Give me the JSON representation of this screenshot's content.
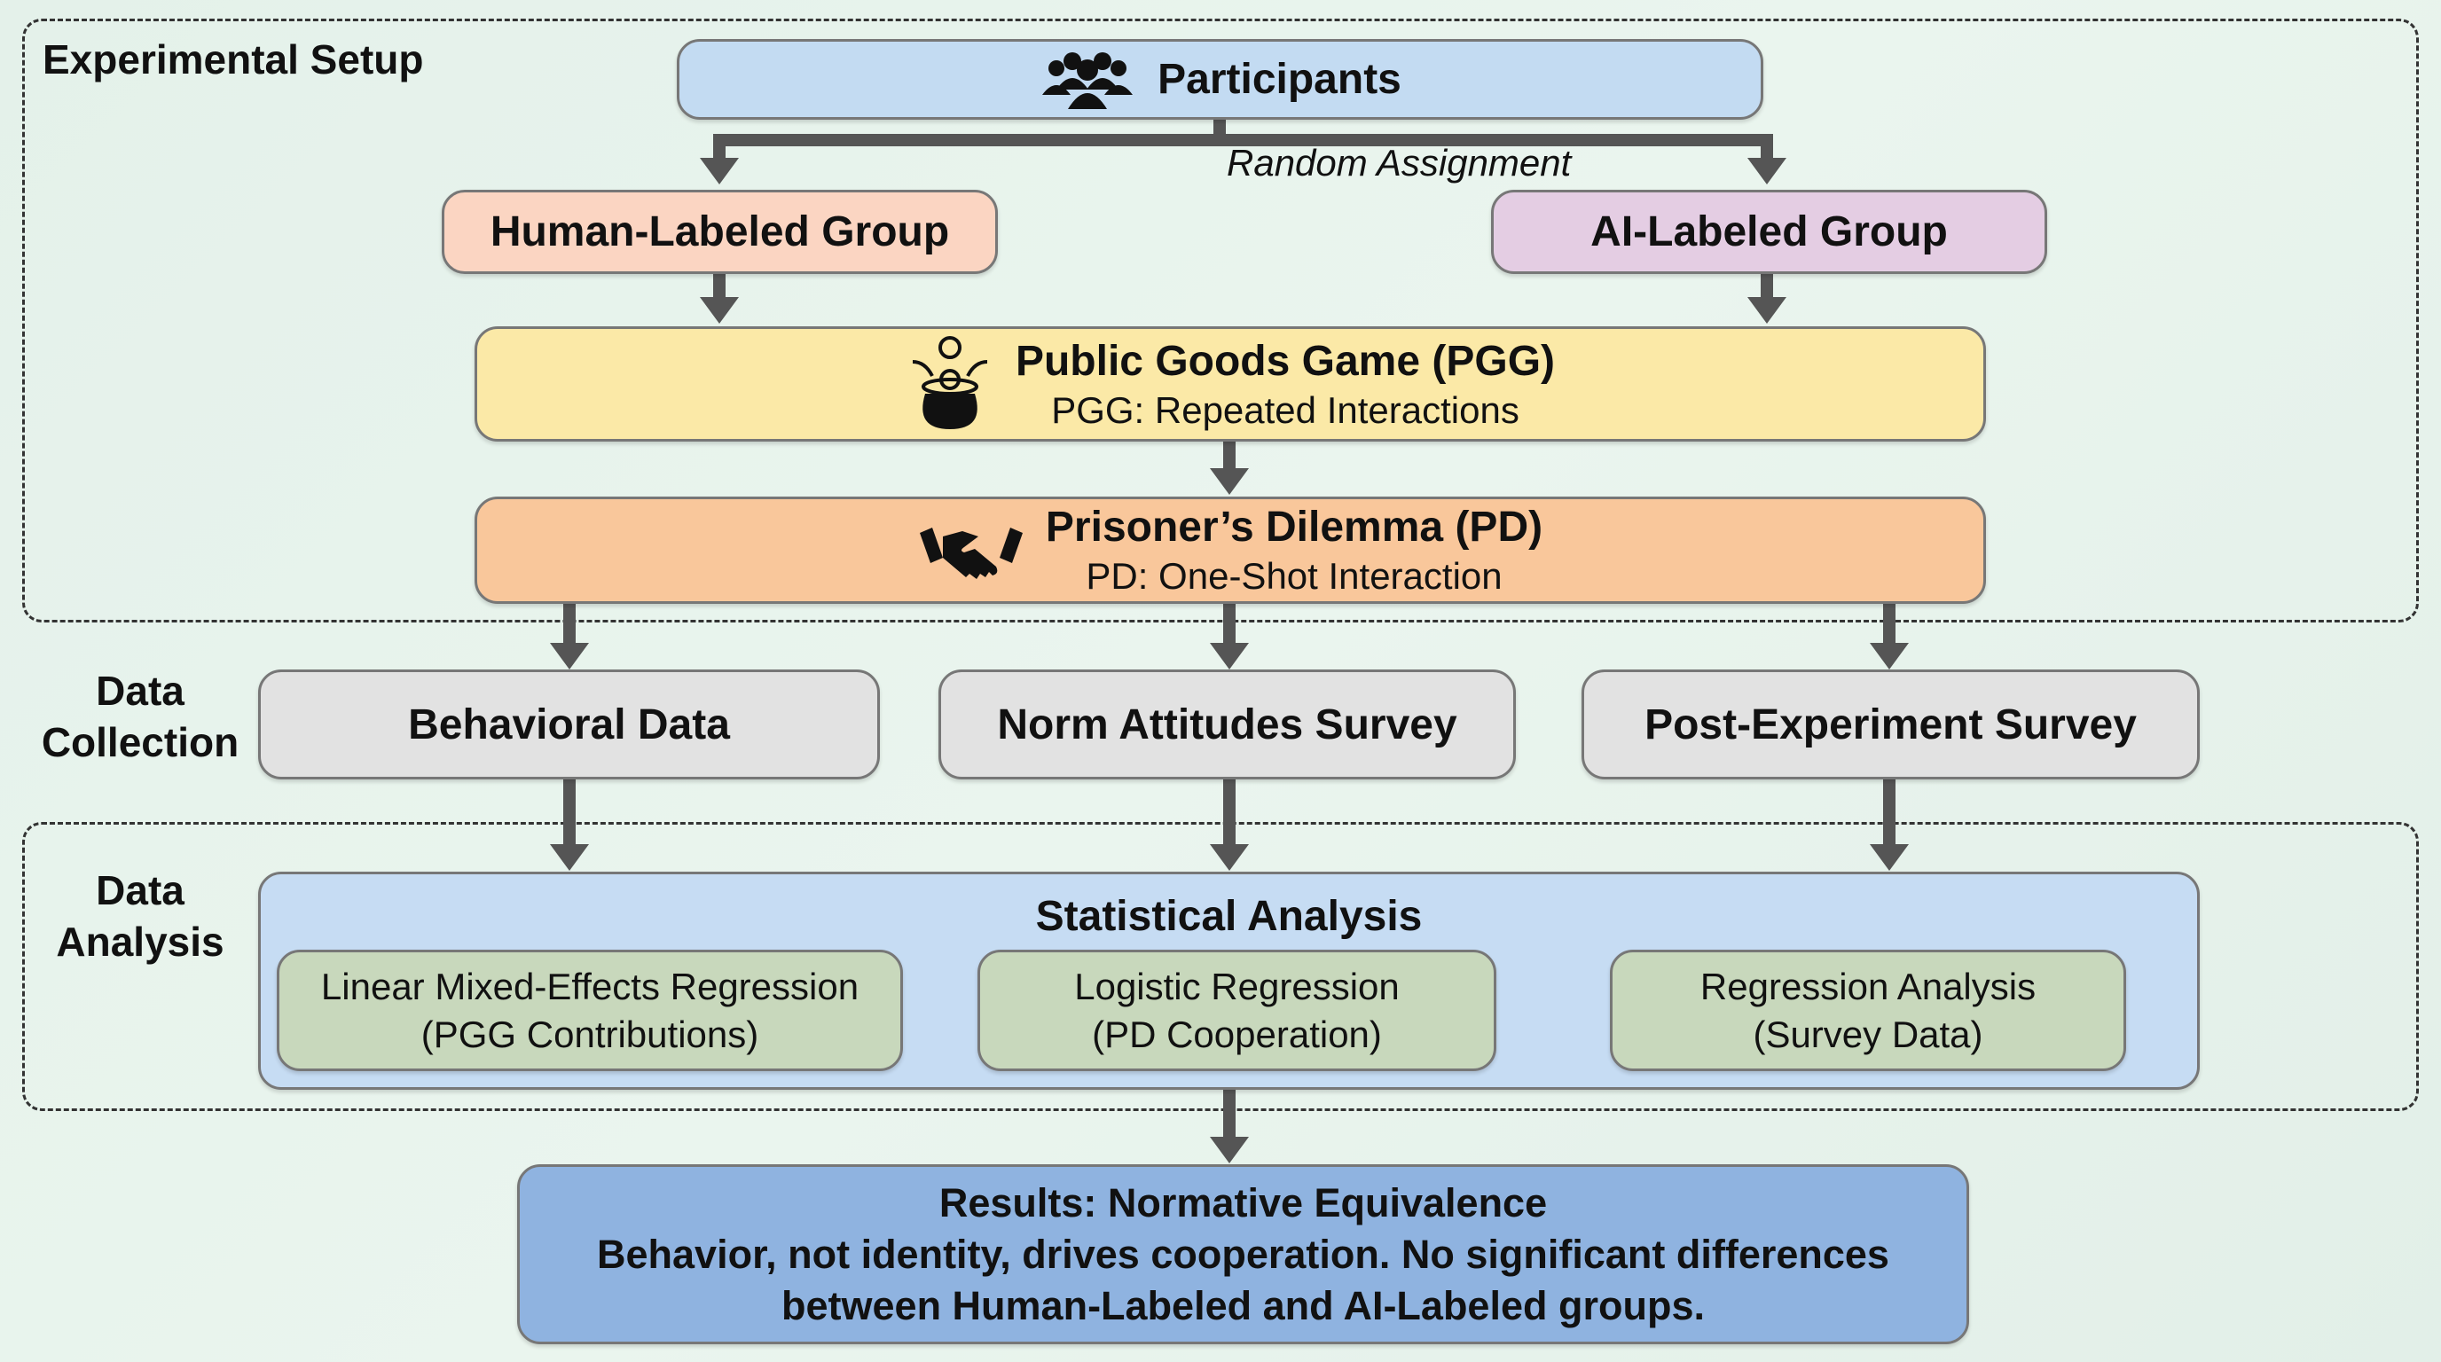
{
  "setup": {
    "label": "Experimental Setup",
    "participants": "Participants",
    "random_assignment": "Random Assignment",
    "human_group": "Human-Labeled Group",
    "ai_group": "AI-Labeled Group",
    "pgg": {
      "title": "Public Goods Game (PGG)",
      "subtitle": "PGG: Repeated Interactions"
    },
    "pd": {
      "title": "Prisoner’s Dilemma (PD)",
      "subtitle": "PD: One-Shot Interaction"
    }
  },
  "collection": {
    "label_line1": "Data",
    "label_line2": "Collection",
    "items": [
      "Behavioral Data",
      "Norm Attitudes Survey",
      "Post-Experiment Survey"
    ]
  },
  "analysis": {
    "label_line1": "Data",
    "label_line2": "Analysis",
    "title": "Statistical Analysis",
    "methods": [
      {
        "line1": "Linear Mixed-Effects Regression",
        "line2": "(PGG Contributions)"
      },
      {
        "line1": "Logistic Regression",
        "line2": "(PD Cooperation)"
      },
      {
        "line1": "Regression Analysis",
        "line2": "(Survey Data)"
      }
    ]
  },
  "results": {
    "line1": "Results: Normative Equivalence",
    "line2": "Behavior, not identity, drives cooperation. No significant differences",
    "line3": "between Human-Labeled and AI-Labeled groups."
  },
  "colors": {
    "participants": "#c3dbf2",
    "human": "#fbd5c2",
    "ai": "#e4cde3",
    "pgg": "#fbe9a7",
    "pd": "#f9c79b",
    "collection": "#e2e2e2",
    "analysis": "#c6dcf3",
    "method": "#c8d8bc",
    "results": "#8fb3e0"
  },
  "icons": [
    "people-group-icon",
    "money-pot-icon",
    "handshake-icon"
  ]
}
